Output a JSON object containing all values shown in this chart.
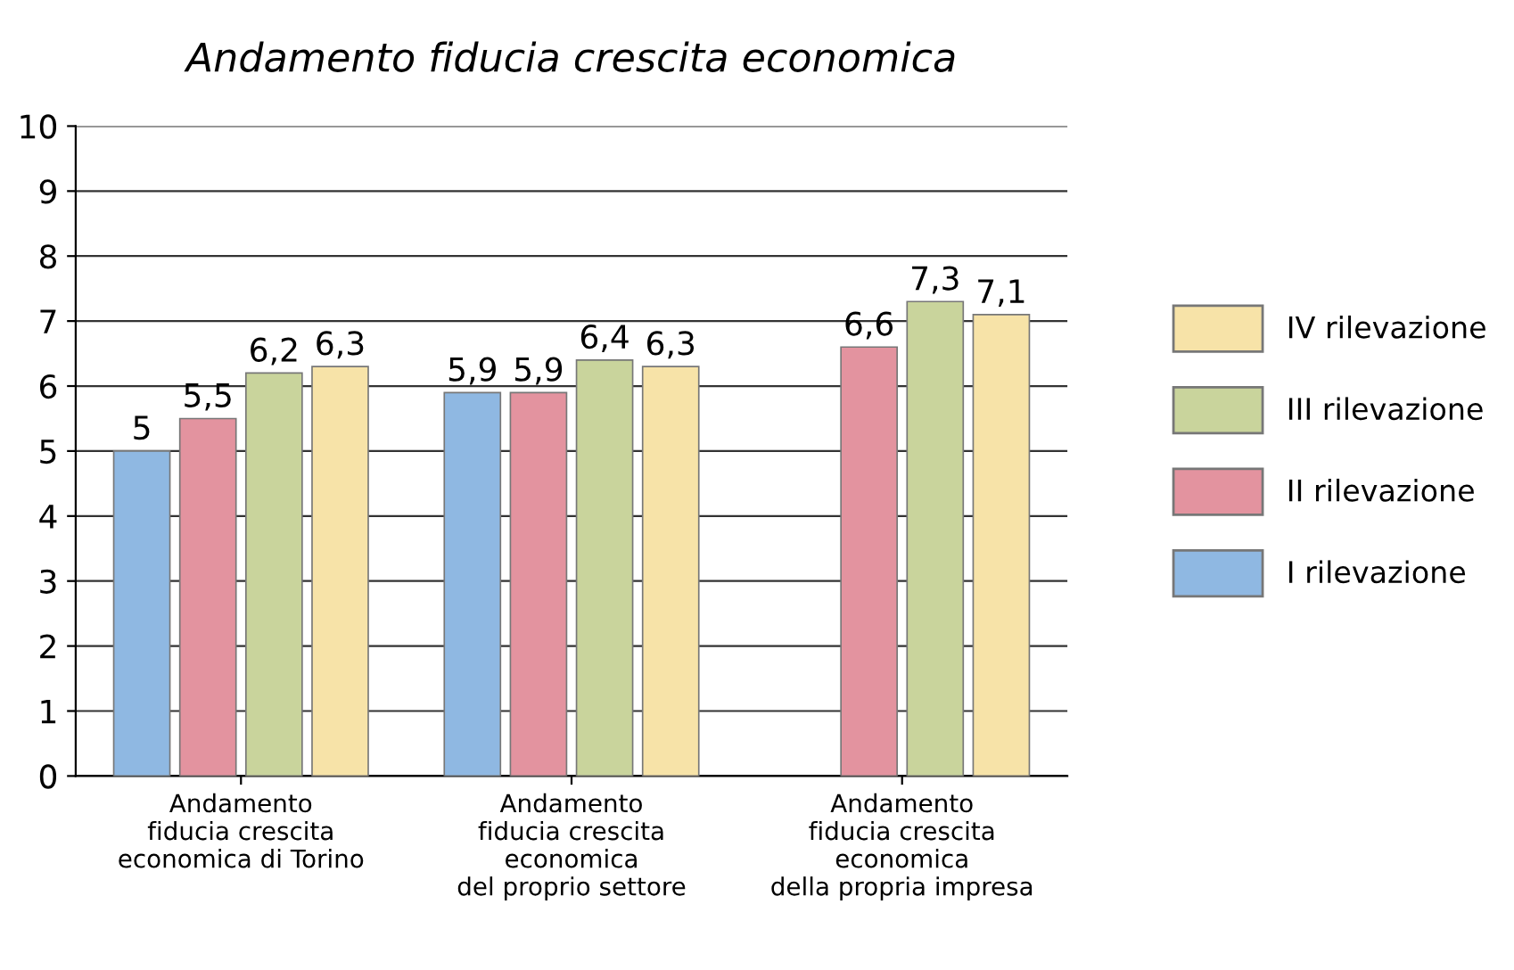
{
  "chart_data": {
    "type": "bar",
    "title": "Andamento fiducia crescita economica",
    "categories": [
      "Andamento\nfiducia crescita\neconomica di Torino",
      "Andamento\nfiducia crescita\neconomica\ndel proprio settore",
      "Andamento\nfiducia crescita\neconomica\ndella propria impresa"
    ],
    "series": [
      {
        "name": "I rilevazione",
        "color": "#8fb8e2",
        "values": [
          5,
          5.9,
          null
        ],
        "value_labels": [
          "5",
          "5,9",
          null
        ]
      },
      {
        "name": "II rilevazione",
        "color": "#e3939f",
        "values": [
          5.5,
          5.9,
          6.6
        ],
        "value_labels": [
          "5,5",
          "5,9",
          "6,6"
        ]
      },
      {
        "name": "III rilevazione",
        "color": "#c9d49c",
        "values": [
          6.2,
          6.4,
          7.3
        ],
        "value_labels": [
          "6,2",
          "6,4",
          "7,3"
        ]
      },
      {
        "name": "IV rilevazione",
        "color": "#f7e3a8",
        "values": [
          6.3,
          6.3,
          7.1
        ],
        "value_labels": [
          "6,3",
          "6,3",
          "7,1"
        ]
      }
    ],
    "ylim": [
      0,
      10
    ],
    "yticks": [
      0,
      1,
      2,
      3,
      4,
      5,
      6,
      7,
      8,
      9,
      10
    ],
    "grid": "y",
    "legend": "right"
  }
}
